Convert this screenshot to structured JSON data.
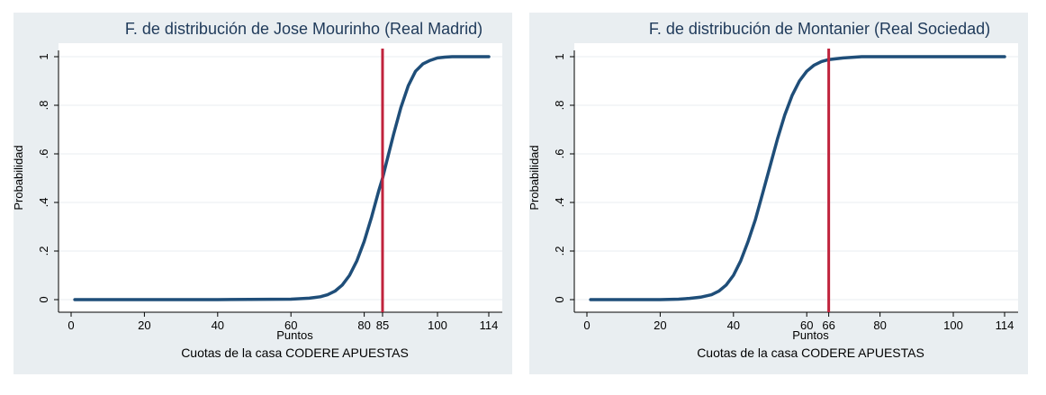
{
  "chart_data": [
    {
      "type": "line",
      "title": "F. de distribución de Jose Mourinho (Real Madrid)",
      "ylabel": "Probabilidad",
      "xlabel": "Puntos",
      "note": "Cuotas de la casa CODERE APUESTAS",
      "xlim": [
        0,
        114
      ],
      "ylim": [
        0,
        1
      ],
      "x_ticks": [
        0,
        20,
        40,
        60,
        80,
        85,
        100,
        114
      ],
      "y_ticks": [
        0,
        0.2,
        0.4,
        0.6,
        0.8,
        1
      ],
      "y_tick_labels": [
        "0",
        ".2",
        ".4",
        ".6",
        ".8",
        "1"
      ],
      "grid": true,
      "line_color": "#1f4e79",
      "marker_color": "#c0233c",
      "vline": 85,
      "series": [
        {
          "x": [
            1,
            40,
            60,
            65,
            68,
            70,
            72,
            74,
            76,
            78,
            80,
            82,
            84,
            85,
            86,
            88,
            90,
            92,
            94,
            96,
            98,
            100,
            102,
            104,
            108,
            114
          ],
          "values": [
            0,
            0,
            0.002,
            0.006,
            0.012,
            0.02,
            0.035,
            0.06,
            0.1,
            0.16,
            0.24,
            0.34,
            0.45,
            0.5,
            0.56,
            0.68,
            0.79,
            0.88,
            0.94,
            0.97,
            0.985,
            0.995,
            0.998,
            1,
            1,
            1
          ]
        }
      ]
    },
    {
      "type": "line",
      "title": "F. de distribución de Montanier (Real Sociedad)",
      "ylabel": "Probabilidad",
      "xlabel": "Puntos",
      "note": "Cuotas de la casa CODERE APUESTAS",
      "xlim": [
        0,
        114
      ],
      "ylim": [
        0,
        1
      ],
      "x_ticks": [
        0,
        20,
        40,
        60,
        66,
        80,
        100,
        114
      ],
      "y_ticks": [
        0,
        0.2,
        0.4,
        0.6,
        0.8,
        1
      ],
      "y_tick_labels": [
        "0",
        ".2",
        ".4",
        ".6",
        ".8",
        "1"
      ],
      "grid": true,
      "line_color": "#1f4e79",
      "marker_color": "#c0233c",
      "vline": 66,
      "series": [
        {
          "x": [
            1,
            20,
            25,
            28,
            31,
            34,
            36,
            38,
            40,
            42,
            44,
            46,
            48,
            50,
            52,
            54,
            56,
            58,
            60,
            62,
            64,
            66,
            70,
            75,
            85,
            114
          ],
          "values": [
            0,
            0,
            0.002,
            0.005,
            0.01,
            0.02,
            0.035,
            0.06,
            0.1,
            0.16,
            0.24,
            0.33,
            0.44,
            0.55,
            0.66,
            0.76,
            0.84,
            0.9,
            0.94,
            0.965,
            0.98,
            0.988,
            0.995,
            1,
            1,
            1
          ]
        }
      ]
    }
  ]
}
